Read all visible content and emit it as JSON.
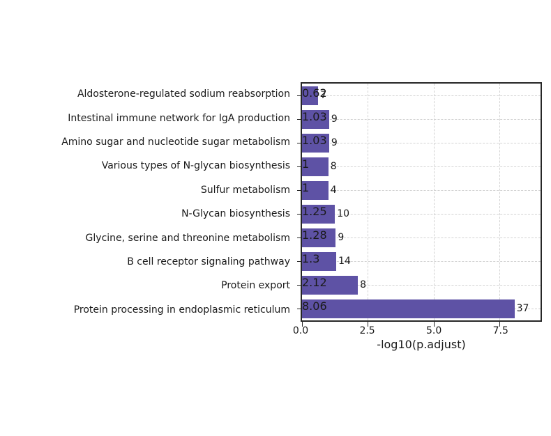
{
  "chart_data": {
    "type": "bar",
    "orientation": "horizontal",
    "title": "",
    "xlabel": "-log10(p.adjust)",
    "ylabel": "",
    "xlim": [
      0,
      9.05
    ],
    "xticks": [
      0,
      2.5,
      5.0,
      7.5
    ],
    "xtick_labels": [
      "0.0",
      "2.5",
      "5.0",
      "7.5"
    ],
    "grid": "dashed-both-axes",
    "legend": "none",
    "bar_color": "#5e52a5",
    "grid_color": "#d2d2d2",
    "axis_color": "#262626",
    "categories": [
      "Aldosterone-regulated sodium reabsorption",
      "Intestinal immune network for IgA production",
      "Amino sugar and nucleotide sugar metabolism",
      "Various types of N-glycan biosynthesis",
      "Sulfur metabolism",
      "N-Glycan biosynthesis",
      "Glycine, serine and threonine metabolism",
      "B cell receptor signaling pathway",
      "Protein export",
      "Protein processing in endoplasmic reticulum"
    ],
    "values": [
      0.62,
      1.03,
      1.03,
      1.0,
      1.0,
      1.25,
      1.28,
      1.3,
      2.12,
      8.06
    ],
    "bar_labels": [
      "7",
      "9",
      "9",
      "8",
      "4",
      "10",
      "9",
      "14",
      "8",
      "37"
    ]
  }
}
